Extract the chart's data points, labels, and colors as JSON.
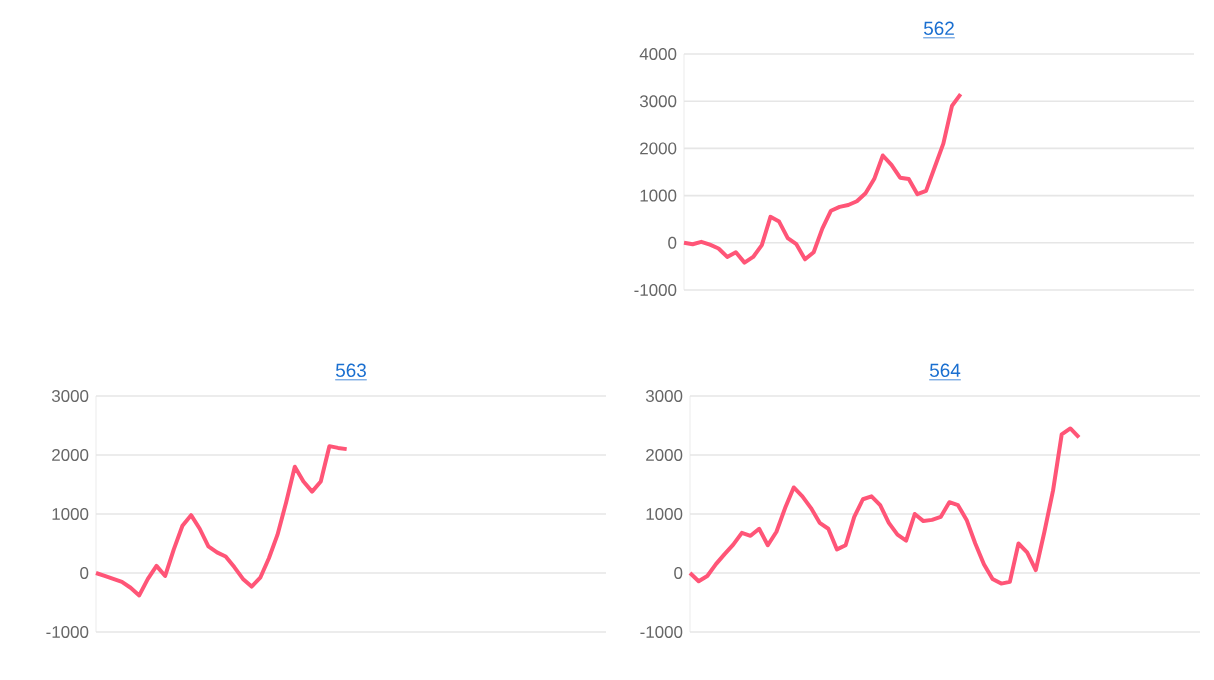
{
  "chart_data": [
    {
      "type": "line",
      "title": "562",
      "categories": [
        null,
        null,
        null,
        null,
        null,
        null,
        null,
        null,
        null,
        null,
        null,
        null,
        null,
        null,
        null,
        null,
        null,
        null,
        null,
        null,
        null,
        null,
        null,
        null,
        null,
        null,
        null,
        null,
        null,
        null,
        null,
        null,
        null,
        null,
        null,
        null,
        null,
        null,
        null,
        null,
        null,
        null,
        null,
        null,
        null,
        null,
        null,
        null,
        null,
        null,
        null,
        null,
        null,
        null,
        null,
        null,
        null,
        null,
        null,
        null
      ],
      "color": "#ff5577",
      "values": [
        0,
        -30,
        20,
        -40,
        -120,
        -300,
        -200,
        -420,
        -300,
        -50,
        550,
        450,
        100,
        -30,
        -350,
        -200,
        300,
        680,
        760,
        800,
        880,
        1050,
        1350,
        1850,
        1650,
        1380,
        1350,
        1030,
        1100,
        1600,
        2100,
        2900,
        3150,
        null,
        null,
        null,
        null,
        null,
        null,
        null,
        null,
        null,
        null,
        null,
        null,
        null,
        null,
        null,
        null,
        null,
        null,
        null,
        null,
        null,
        null,
        null,
        null,
        null,
        null,
        null
      ],
      "ylim": [
        -1000,
        4000
      ],
      "yticks": [
        -1000,
        0,
        1000,
        2000,
        3000,
        4000
      ],
      "grid": "y",
      "tick_labels": "y"
    },
    {
      "type": "line",
      "title": "563",
      "categories": [
        null,
        null,
        null,
        null,
        null,
        null,
        null,
        null,
        null,
        null,
        null,
        null,
        null,
        null,
        null,
        null,
        null,
        null,
        null,
        null,
        null,
        null,
        null,
        null,
        null,
        null,
        null,
        null,
        null,
        null,
        null,
        null,
        null,
        null,
        null,
        null,
        null,
        null,
        null,
        null,
        null,
        null,
        null,
        null,
        null,
        null,
        null,
        null,
        null,
        null,
        null,
        null,
        null,
        null,
        null,
        null,
        null,
        null,
        null,
        null
      ],
      "color": "#ff5577",
      "values": [
        0,
        -50,
        -100,
        -150,
        -250,
        -380,
        -100,
        120,
        -50,
        400,
        800,
        980,
        750,
        450,
        350,
        280,
        100,
        -100,
        -230,
        -80,
        250,
        650,
        1200,
        1800,
        1550,
        1380,
        1550,
        2150,
        2120,
        2100,
        null,
        null,
        null,
        null,
        null,
        null,
        null,
        null,
        null,
        null,
        null,
        null,
        null,
        null,
        null,
        null,
        null,
        null,
        null,
        null,
        null,
        null,
        null,
        null,
        null,
        null,
        null,
        null,
        null,
        null
      ],
      "ylim": [
        -1000,
        3000
      ],
      "yticks": [
        -1000,
        0,
        1000,
        2000,
        3000
      ],
      "grid": "y",
      "tick_labels": "y"
    },
    {
      "type": "line",
      "title": "564",
      "categories": [
        null,
        null,
        null,
        null,
        null,
        null,
        null,
        null,
        null,
        null,
        null,
        null,
        null,
        null,
        null,
        null,
        null,
        null,
        null,
        null,
        null,
        null,
        null,
        null,
        null,
        null,
        null,
        null,
        null,
        null,
        null,
        null,
        null,
        null,
        null,
        null,
        null,
        null,
        null,
        null,
        null,
        null,
        null,
        null,
        null,
        null,
        null,
        null,
        null,
        null,
        null,
        null,
        null,
        null,
        null,
        null,
        null,
        null,
        null,
        null
      ],
      "color": "#ff5577",
      "values": [
        0,
        -140,
        -50,
        150,
        320,
        480,
        680,
        630,
        750,
        470,
        700,
        1100,
        1450,
        1300,
        1100,
        850,
        750,
        400,
        470,
        950,
        1250,
        1300,
        1150,
        850,
        650,
        550,
        1000,
        880,
        900,
        950,
        1200,
        1150,
        900,
        500,
        150,
        -100,
        -180,
        -150,
        500,
        350,
        50,
        700,
        1400,
        2350,
        2450,
        2300,
        null,
        null,
        null,
        null,
        null,
        null,
        null,
        null,
        null,
        null,
        null,
        null,
        null,
        null
      ],
      "ylim": [
        -1000,
        3000
      ],
      "yticks": [
        -1000,
        0,
        1000,
        2000,
        3000
      ],
      "grid": "y",
      "tick_labels": "y"
    }
  ]
}
